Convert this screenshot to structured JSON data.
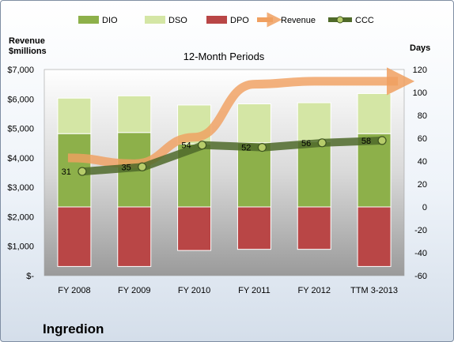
{
  "chart_data": {
    "type": "bar",
    "title": "12-Month Periods",
    "company": "Ingredion",
    "left_axis_label": "Revenue\n$millions",
    "right_axis_label": "Days",
    "categories": [
      "FY 2008",
      "FY 2009",
      "FY 2010",
      "FY 2011",
      "FY 2012",
      "TTM 3-2013"
    ],
    "left_axis": {
      "min": 0,
      "max": 7000,
      "step": 1000,
      "ticks": [
        "$-",
        "$1,000",
        "$2,000",
        "$3,000",
        "$4,000",
        "$5,000",
        "$6,000",
        "$7,000"
      ]
    },
    "right_axis": {
      "min": -60,
      "max": 120,
      "step": 20,
      "ticks": [
        "-60",
        "-40",
        "-20",
        "0",
        "20",
        "40",
        "60",
        "80",
        "100",
        "120"
      ]
    },
    "series": [
      {
        "name": "DIO",
        "kind": "stacked-bar-days",
        "color": "#8db04a",
        "values": [
          64,
          65,
          55,
          56,
          57,
          64
        ]
      },
      {
        "name": "DSO",
        "kind": "stacked-bar-days",
        "color": "#d4e6a5",
        "values": [
          31,
          32,
          34,
          34,
          34,
          35
        ]
      },
      {
        "name": "DPO",
        "kind": "negative-bar-days",
        "color": "#b94646",
        "values": [
          -52,
          -52,
          -38,
          -37,
          -37,
          -52
        ]
      },
      {
        "name": "Revenue",
        "kind": "arrow-line-millions",
        "color": "#f0a060",
        "values": [
          4000,
          3800,
          4700,
          6500,
          6600,
          6600
        ]
      },
      {
        "name": "CCC",
        "kind": "line-days",
        "color": "#4f6a2a",
        "values": [
          31,
          35,
          54,
          52,
          56,
          58
        ],
        "labels": [
          "31",
          "35",
          "54",
          "52",
          "56",
          "58"
        ]
      }
    ],
    "grid": false,
    "legend": "top"
  }
}
